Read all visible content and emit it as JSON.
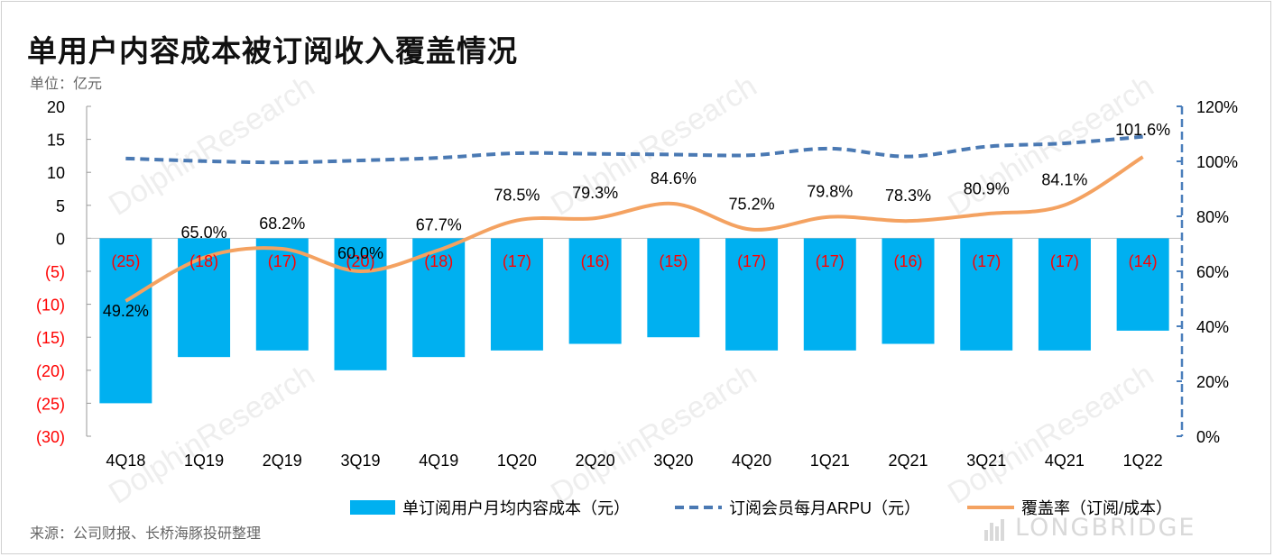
{
  "header": {
    "title": "单用户内容成本被订阅收入覆盖情况",
    "unit": "单位：亿元"
  },
  "footer": {
    "source": "来源：公司财报、长桥海豚投研整理",
    "brand": "LONGBRIDGE"
  },
  "watermark": "DolphinResearch",
  "colors": {
    "bar": "#00b0f0",
    "arpu_line": "#4a79b3",
    "coverage_line": "#f4a261",
    "negative_label": "#ff0000",
    "axis": "#4a7ebb"
  },
  "chart_data": {
    "type": "bar",
    "categories": [
      "4Q18",
      "1Q19",
      "2Q19",
      "3Q19",
      "4Q19",
      "1Q20",
      "2Q20",
      "3Q20",
      "4Q20",
      "1Q21",
      "2Q21",
      "3Q21",
      "4Q21",
      "1Q22"
    ],
    "left_axis": {
      "range": [
        -30,
        20
      ],
      "ticks": [
        20,
        15,
        10,
        5,
        0,
        -5,
        -10,
        -15,
        -20,
        -25,
        -30
      ],
      "tick_labels": [
        "20",
        "15",
        "10",
        "5",
        "0",
        "(5)",
        "(10)",
        "(15)",
        "(20)",
        "(25)",
        "(30)"
      ]
    },
    "right_axis": {
      "range": [
        0,
        1.2
      ],
      "ticks": [
        1.2,
        1.0,
        0.8,
        0.6,
        0.4,
        0.2,
        0.0
      ],
      "tick_labels": [
        "120%",
        "100%",
        "80%",
        "60%",
        "40%",
        "20%",
        "0%"
      ]
    },
    "series": [
      {
        "name": "单订阅用户月均内容成本（元）",
        "type": "bar",
        "axis": "left",
        "values": [
          -25,
          -18,
          -17,
          -20,
          -18,
          -17,
          -16,
          -15,
          -17,
          -17,
          -16,
          -17,
          -17,
          -14
        ],
        "labels": [
          "(25)",
          "(18)",
          "(17)",
          "(20)",
          "(18)",
          "(17)",
          "(16)",
          "(15)",
          "(17)",
          "(17)",
          "(16)",
          "(17)",
          "(17)",
          "(14)"
        ]
      },
      {
        "name": "订阅会员每月ARPU（元）",
        "type": "line-dashed",
        "axis": "left",
        "values": [
          12.1,
          11.7,
          11.5,
          11.8,
          12.2,
          12.9,
          12.8,
          12.7,
          12.6,
          13.6,
          12.4,
          13.9,
          14.4,
          15.4
        ]
      },
      {
        "name": "覆盖率（订阅/成本）",
        "type": "line",
        "axis": "right",
        "values": [
          0.492,
          0.65,
          0.682,
          0.6,
          0.677,
          0.785,
          0.793,
          0.846,
          0.752,
          0.798,
          0.783,
          0.809,
          0.841,
          1.016
        ],
        "labels": [
          "49.2%",
          "65.0%",
          "68.2%",
          "60.0%",
          "67.7%",
          "78.5%",
          "79.3%",
          "84.6%",
          "75.2%",
          "79.8%",
          "78.3%",
          "80.9%",
          "84.1%",
          "101.6%"
        ]
      }
    ]
  }
}
